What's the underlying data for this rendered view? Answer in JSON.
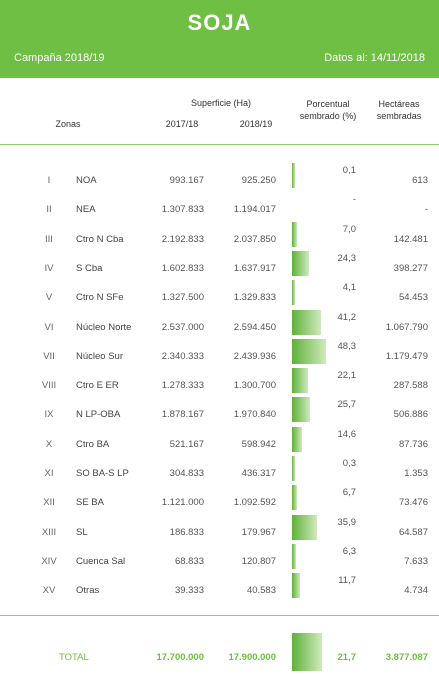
{
  "header": {
    "title": "SOJA",
    "campaign": "Campaña 2018/19",
    "datos": "Datos al: 14/11/2018",
    "bg_color": "#6fbf45"
  },
  "columns": {
    "zonas": "Zonas",
    "superficie": "Superficie (Ha)",
    "y1": "2017/18",
    "y2": "2018/19",
    "pct_line1": "Porcentual",
    "pct_line2": "sembrado (%)",
    "ha_line1": "Hectáreas",
    "ha_line2": "sembradas"
  },
  "rows": [
    {
      "roman": "I",
      "zone": "NOA",
      "y1": "993.167",
      "y2": "925.250",
      "pct": "0,1",
      "ha": "613",
      "pct_value": 0.1
    },
    {
      "roman": "II",
      "zone": "NEA",
      "y1": "1.307.833",
      "y2": "1.194.017",
      "pct": "-",
      "ha": "-",
      "pct_value": 0
    },
    {
      "roman": "III",
      "zone": "Ctro N Cba",
      "y1": "2.192.833",
      "y2": "2.037.850",
      "pct": "7,0",
      "ha": "142.481",
      "pct_value": 7.0
    },
    {
      "roman": "IV",
      "zone": "S Cba",
      "y1": "1.602.833",
      "y2": "1.637.917",
      "pct": "24,3",
      "ha": "398.277",
      "pct_value": 24.3
    },
    {
      "roman": "V",
      "zone": "Ctro N SFe",
      "y1": "1.327.500",
      "y2": "1.329.833",
      "pct": "4,1",
      "ha": "54.453",
      "pct_value": 4.1
    },
    {
      "roman": "VI",
      "zone": "Núcleo Norte",
      "y1": "2.537.000",
      "y2": "2.594.450",
      "pct": "41,2",
      "ha": "1.067.790",
      "pct_value": 41.2
    },
    {
      "roman": "VII",
      "zone": "Núcleo Sur",
      "y1": "2.340.333",
      "y2": "2.439.936",
      "pct": "48,3",
      "ha": "1.179.479",
      "pct_value": 48.3
    },
    {
      "roman": "VIII",
      "zone": "Ctro E ER",
      "y1": "1.278.333",
      "y2": "1.300.700",
      "pct": "22,1",
      "ha": "287.588",
      "pct_value": 22.1
    },
    {
      "roman": "IX",
      "zone": "N LP-OBA",
      "y1": "1.878.167",
      "y2": "1.970.840",
      "pct": "25,7",
      "ha": "506.886",
      "pct_value": 25.7
    },
    {
      "roman": "X",
      "zone": "Ctro BA",
      "y1": "521.167",
      "y2": "598.942",
      "pct": "14,6",
      "ha": "87.736",
      "pct_value": 14.6
    },
    {
      "roman": "XI",
      "zone": "SO BA-S LP",
      "y1": "304.833",
      "y2": "436.317",
      "pct": "0,3",
      "ha": "1.353",
      "pct_value": 0.3
    },
    {
      "roman": "XII",
      "zone": "SE BA",
      "y1": "1.121.000",
      "y2": "1.092.592",
      "pct": "6,7",
      "ha": "73.476",
      "pct_value": 6.7
    },
    {
      "roman": "XIII",
      "zone": "SL",
      "y1": "186.833",
      "y2": "179.967",
      "pct": "35,9",
      "ha": "64.587",
      "pct_value": 35.9
    },
    {
      "roman": "XIV",
      "zone": "Cuenca Sal",
      "y1": "68.833",
      "y2": "120.807",
      "pct": "6,3",
      "ha": "7.633",
      "pct_value": 6.3
    },
    {
      "roman": "XV",
      "zone": "Otras",
      "y1": "39.333",
      "y2": "40.583",
      "pct": "11,7",
      "ha": "4.734",
      "pct_value": 11.7
    }
  ],
  "total": {
    "label": "TOTAL",
    "y1": "17.700.000",
    "y2": "17.900.000",
    "pct": "21,7",
    "ha": "3.877.087"
  }
}
